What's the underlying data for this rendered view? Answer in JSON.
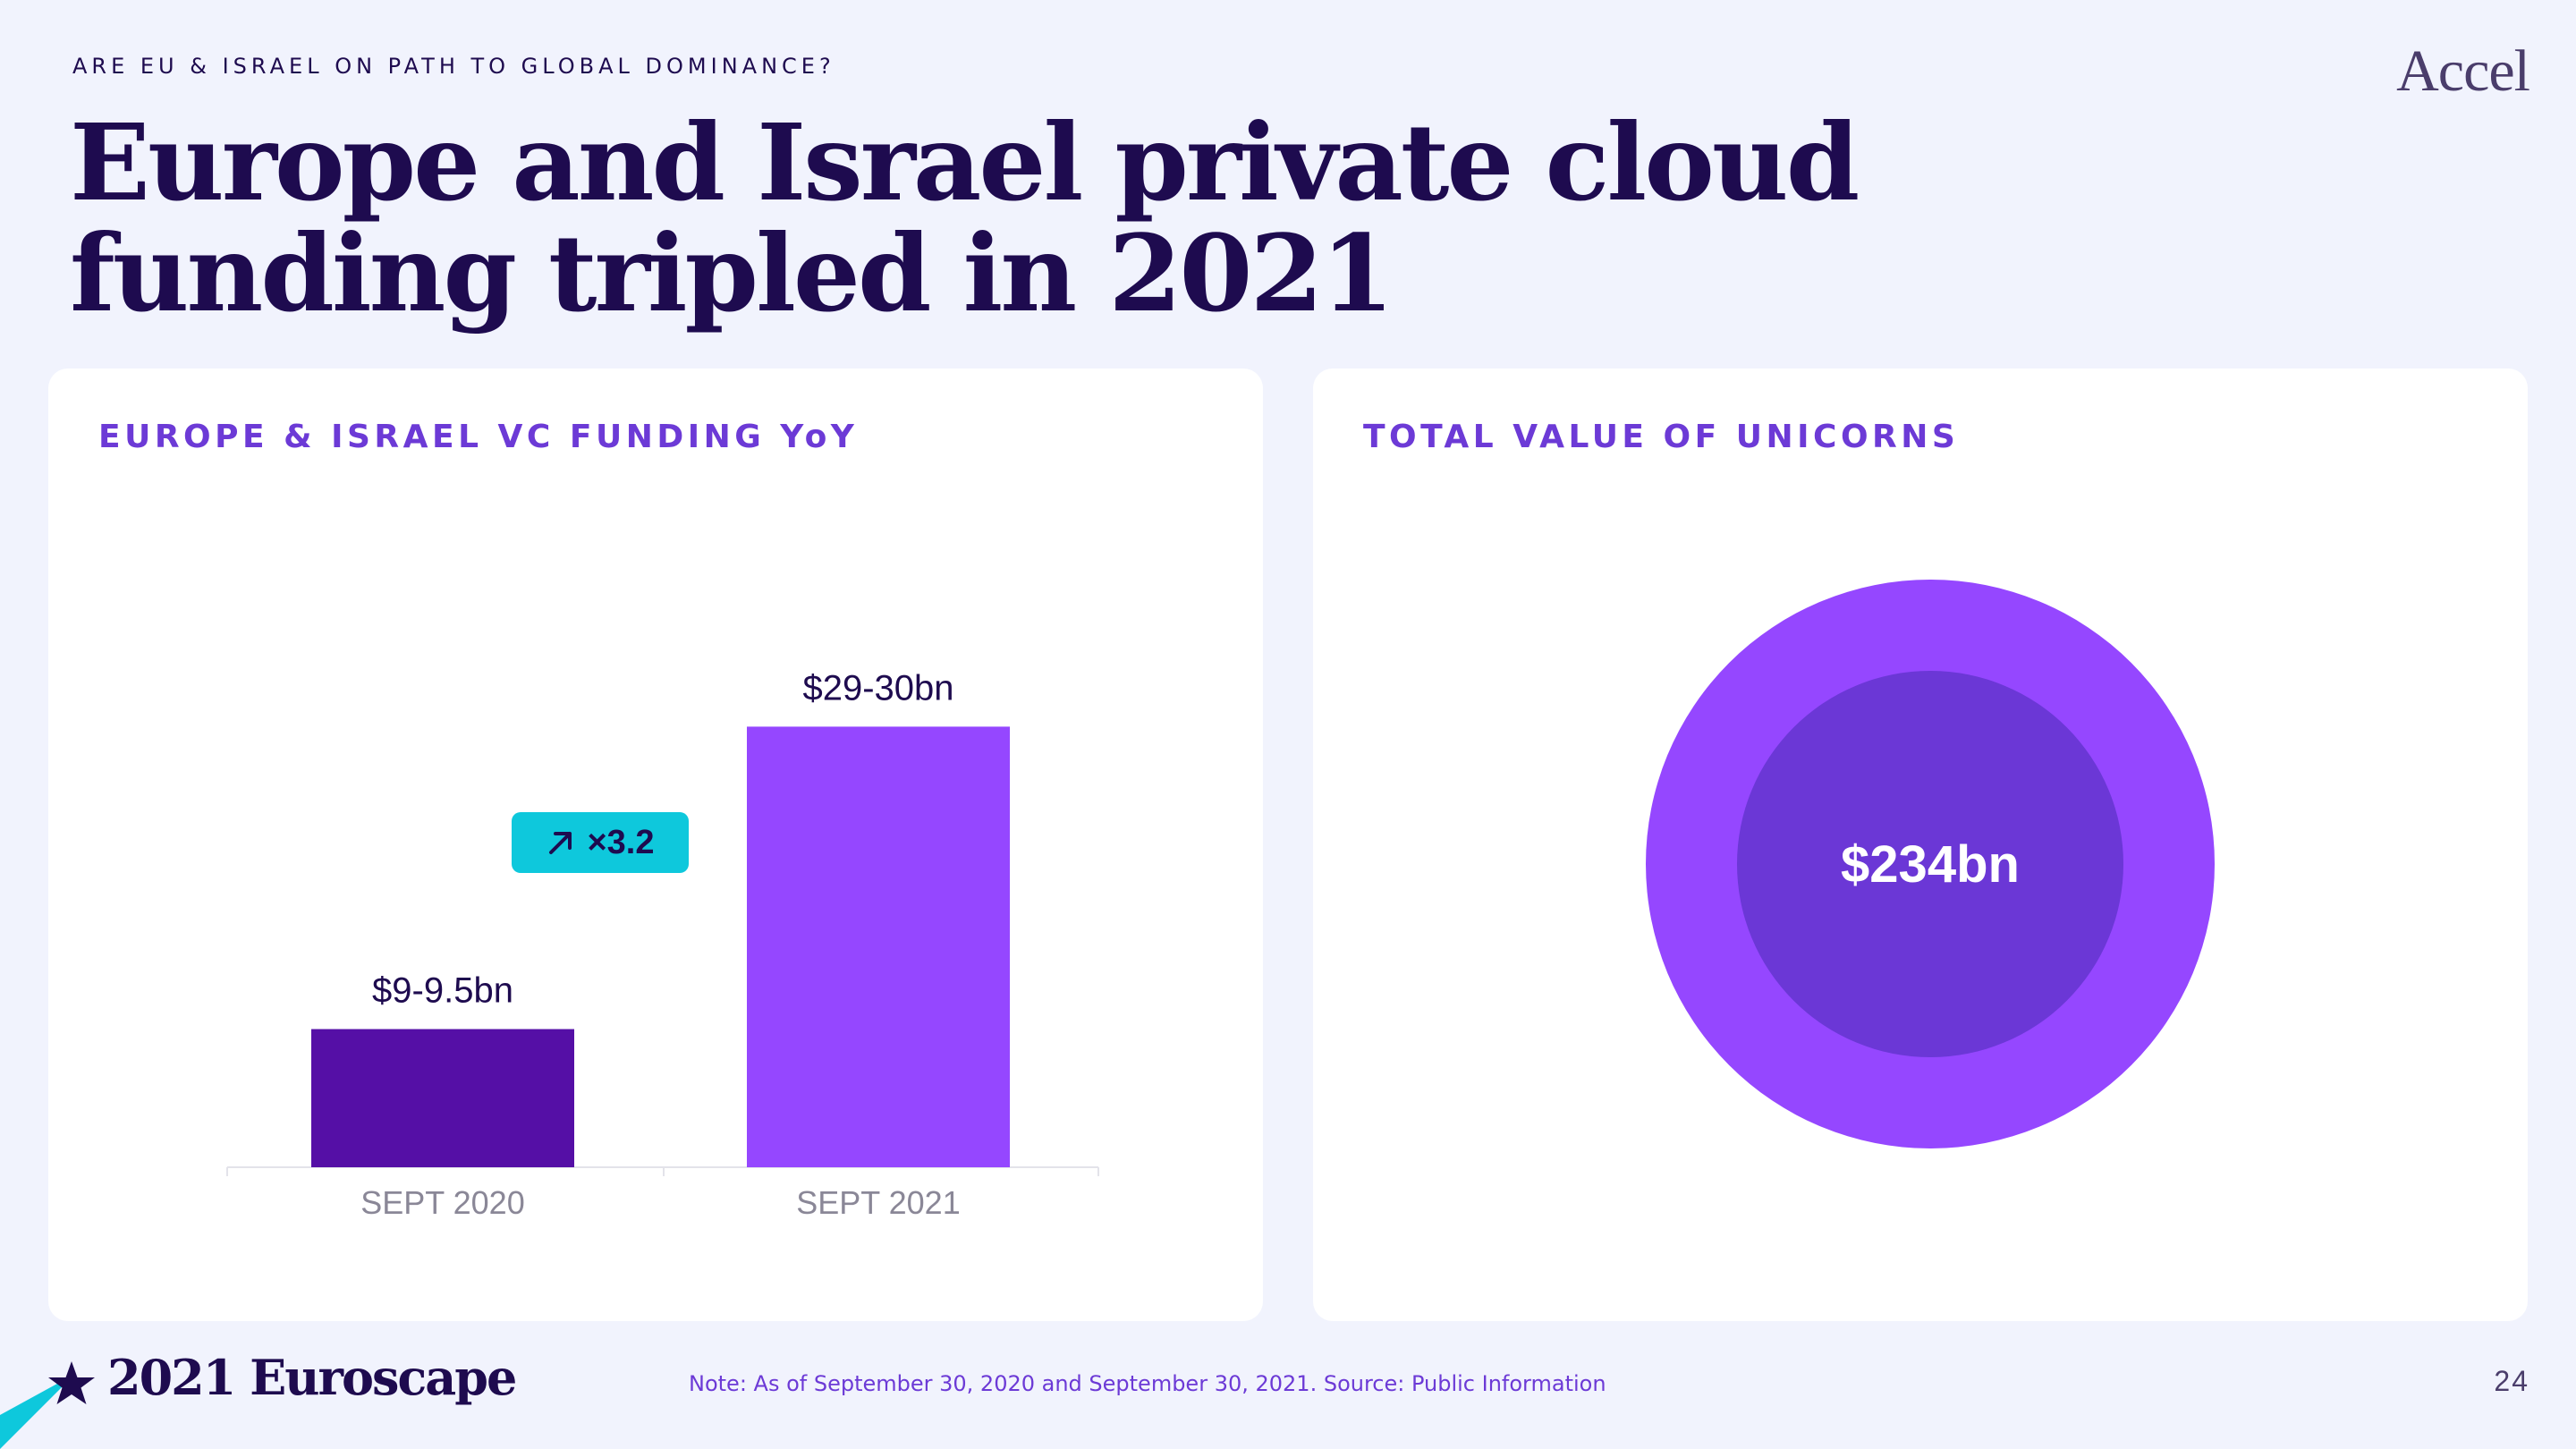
{
  "header": {
    "eyebrow": "ARE EU & ISRAEL ON PATH TO GLOBAL DOMINANCE?",
    "logo": "Accel",
    "title": "Europe and Israel private cloud funding tripled in 2021"
  },
  "left_card": {
    "title": "EUROPE & ISRAEL VC FUNDING YoY",
    "multiplier_label": "×3.2",
    "multiplier_icon": "arrow-up-right-icon"
  },
  "right_card": {
    "title": "TOTAL VALUE OF UNICORNS",
    "value_label": "$234bn"
  },
  "footer": {
    "brand": "2021 Euroscape",
    "note": "Note: As of September 30, 2020 and September 30, 2021. Source: Public Information",
    "page_number": "24"
  },
  "colors": {
    "background": "#f1f3fd",
    "navy": "#1e0b4f",
    "bar_2020": "#550fa6",
    "bar_2021": "#9547ff",
    "donut_outer": "#9547ff",
    "donut_inner": "#6b37d6",
    "accent_cyan": "#0ec8dc",
    "card_title": "#6c3ad6"
  },
  "chart_data": [
    {
      "type": "bar",
      "title": "EUROPE & ISRAEL VC FUNDING YoY",
      "categories": [
        "SEPT 2020",
        "SEPT 2021"
      ],
      "values": [
        9.25,
        29.5
      ],
      "data_labels": [
        "$9-9.5bn",
        "$29-30bn"
      ],
      "unit": "$bn",
      "ylim": [
        0,
        31.5
      ],
      "grid": false,
      "annotation": "×3.2"
    },
    {
      "type": "pie",
      "title": "TOTAL VALUE OF UNICORNS",
      "center_label": "$234bn"
    }
  ]
}
